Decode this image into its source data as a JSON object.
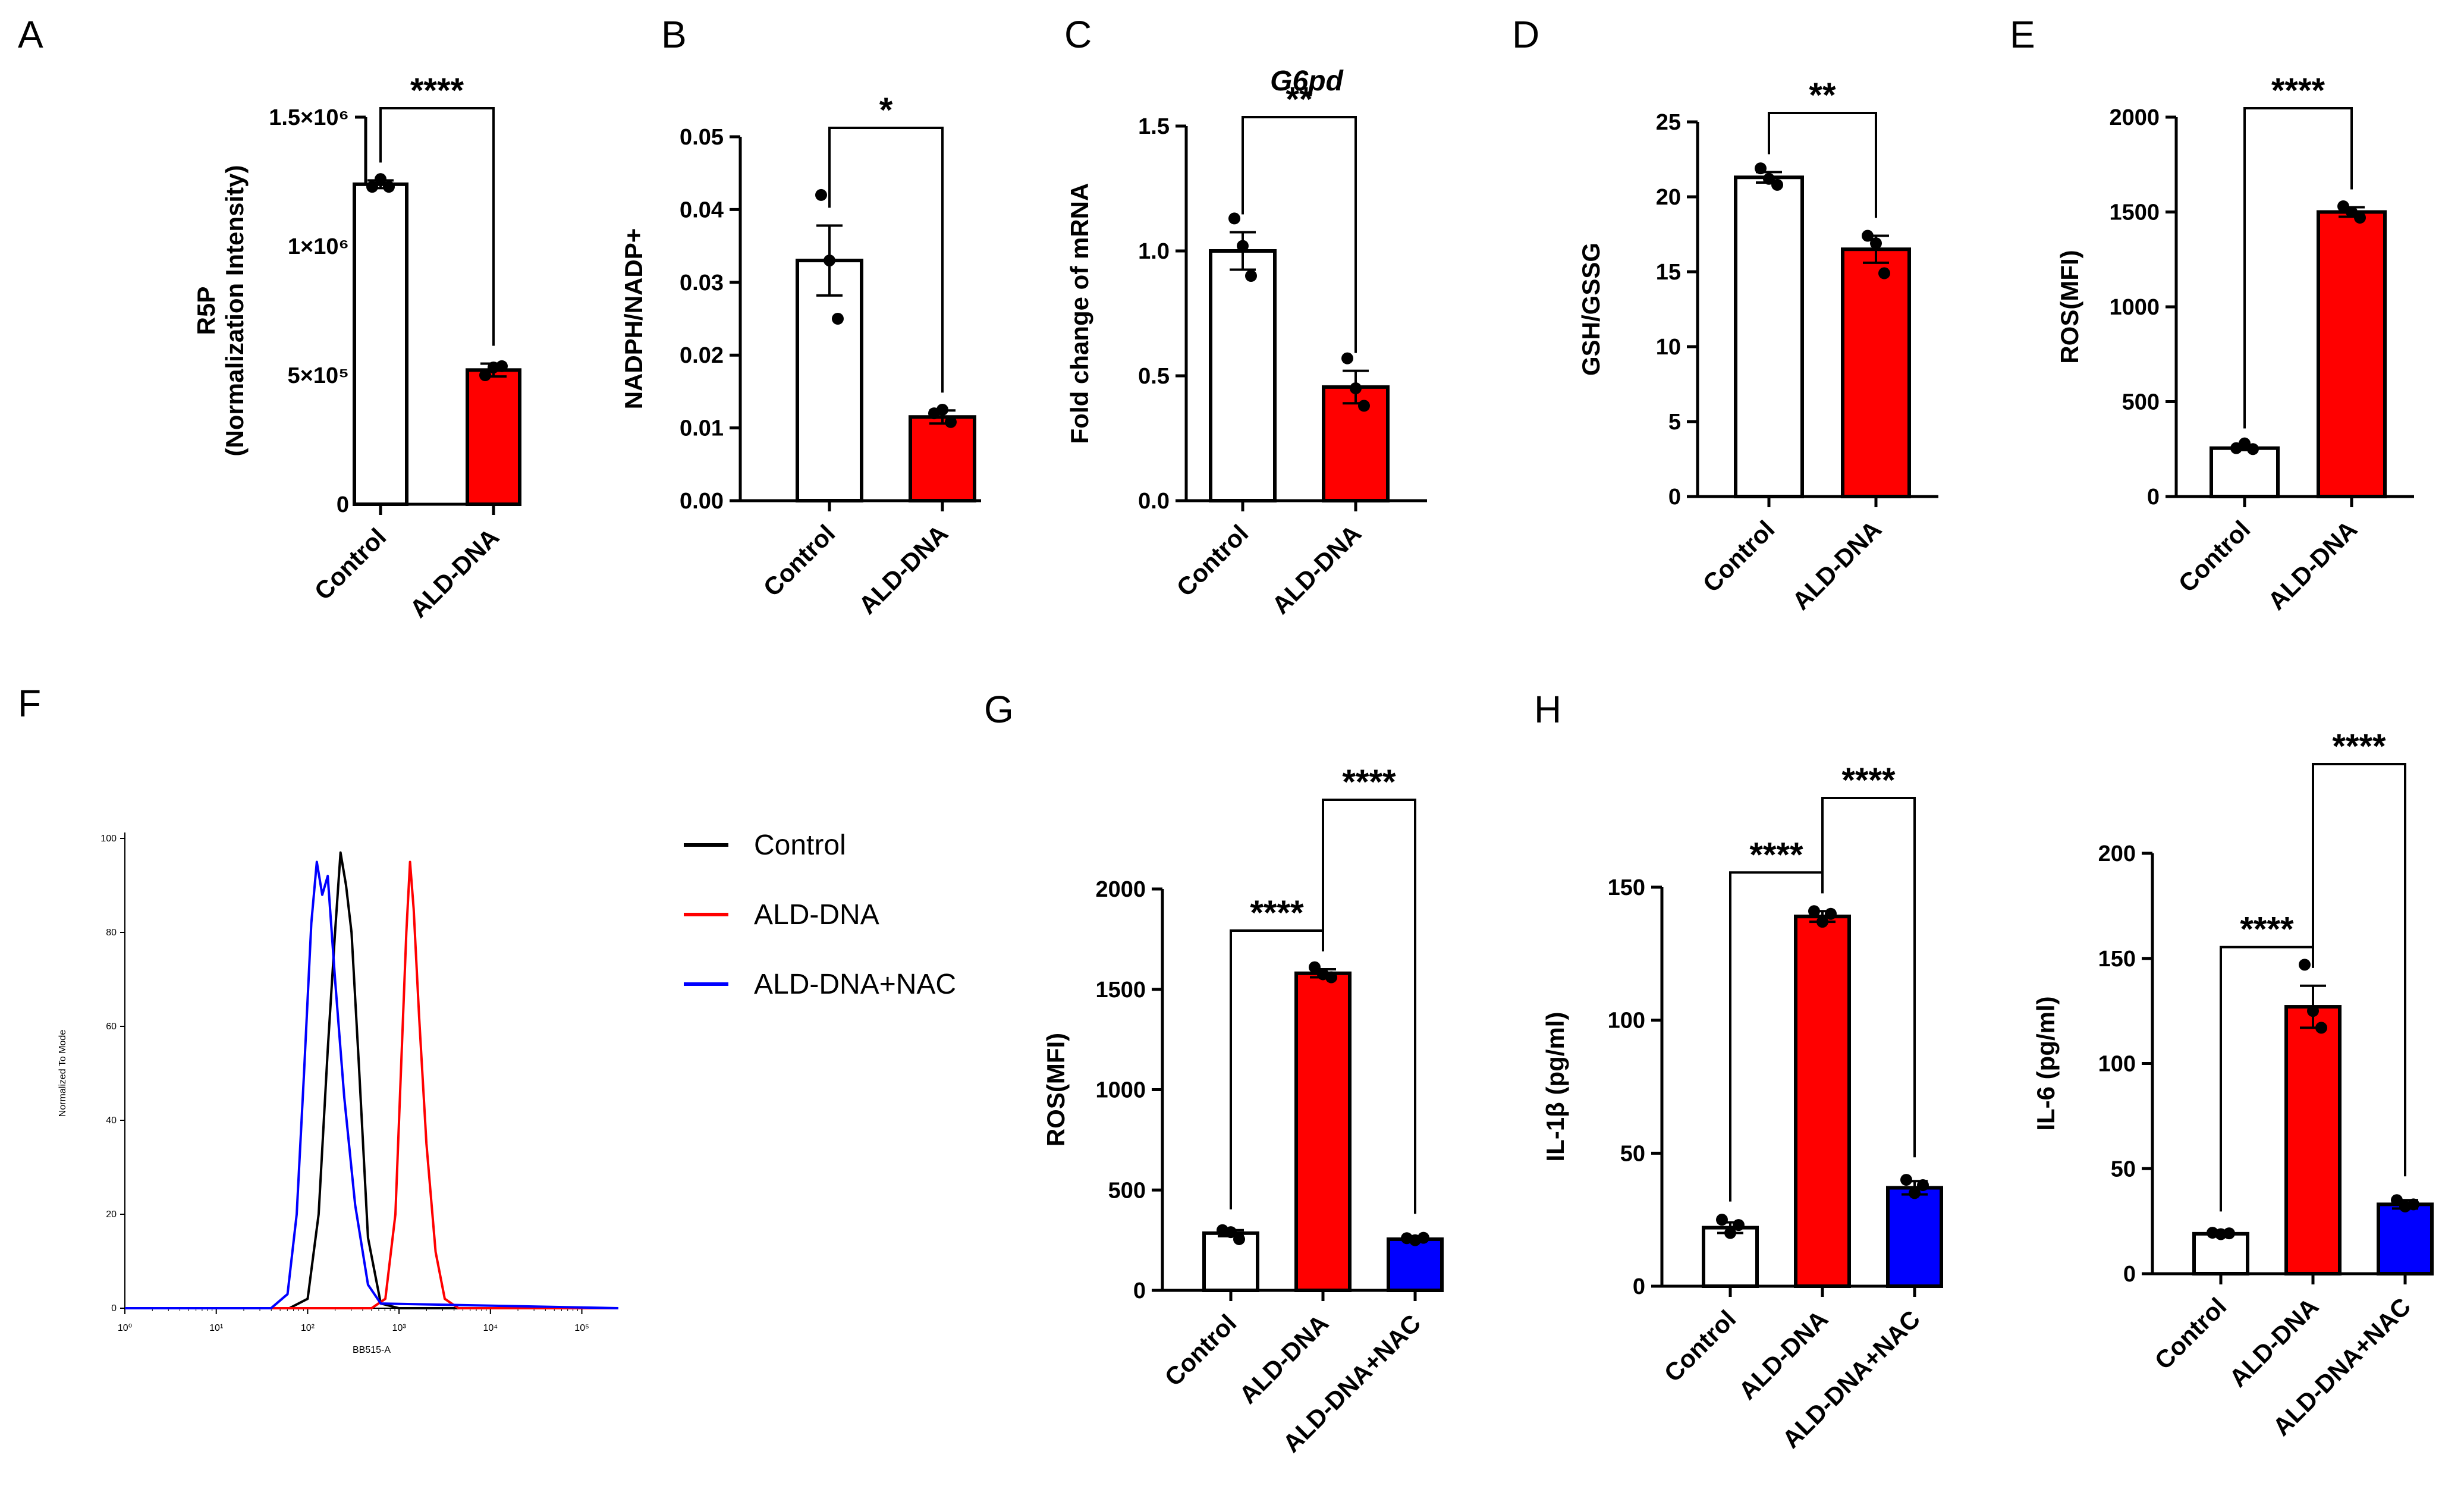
{
  "colors": {
    "control": "#ffffff",
    "ald_dna": "#ff0000",
    "ald_dna_nac": "#0000ff",
    "axis": "#000000"
  },
  "chart_data": [
    {
      "id": "A",
      "letter": "A",
      "type": "bar",
      "title": "",
      "ylabel": [
        "R5P",
        "(Normalization Intensity)"
      ],
      "categories": [
        "Control",
        "ALD-DNA"
      ],
      "values": [
        1240000,
        520000
      ],
      "errors": [
        15000,
        25000
      ],
      "points": [
        [
          1230000,
          1260000,
          1230000
        ],
        [
          500000,
          530000,
          535000
        ]
      ],
      "ylim": [
        0,
        1500000
      ],
      "ticks": [
        0,
        500000,
        1000000,
        1500000
      ],
      "tick_labels": [
        "0",
        "5×10⁵",
        "1×10⁶",
        "1.5×10⁶"
      ],
      "significance": [
        {
          "from": 0,
          "to": 1,
          "label": "****"
        }
      ]
    },
    {
      "id": "B",
      "letter": "B",
      "type": "bar",
      "title": "",
      "ylabel": [
        "NADPH/NADP+"
      ],
      "categories": [
        "Control",
        "ALD-DNA"
      ],
      "values": [
        0.033,
        0.0115
      ],
      "errors": [
        0.0048,
        0.0009
      ],
      "points": [
        [
          0.042,
          0.033,
          0.025
        ],
        [
          0.012,
          0.0125,
          0.0108
        ]
      ],
      "ylim": [
        0,
        0.05
      ],
      "ticks": [
        0,
        0.01,
        0.02,
        0.03,
        0.04,
        0.05
      ],
      "tick_labels": [
        "0.00",
        "0.01",
        "0.02",
        "0.03",
        "0.04",
        "0.05"
      ],
      "significance": [
        {
          "from": 0,
          "to": 1,
          "label": "*"
        }
      ]
    },
    {
      "id": "C",
      "letter": "C",
      "type": "bar",
      "title": "G6pd",
      "ylabel": [
        "Fold change of mRNA"
      ],
      "categories": [
        "Control",
        "ALD-DNA"
      ],
      "values": [
        1.0,
        0.455
      ],
      "errors": [
        0.075,
        0.065
      ],
      "points": [
        [
          1.13,
          1.02,
          0.9
        ],
        [
          0.57,
          0.45,
          0.38
        ]
      ],
      "ylim": [
        0,
        1.5
      ],
      "ticks": [
        0,
        0.5,
        1.0,
        1.5
      ],
      "tick_labels": [
        "0.0",
        "0.5",
        "1.0",
        "1.5"
      ],
      "significance": [
        {
          "from": 0,
          "to": 1,
          "label": "**"
        }
      ]
    },
    {
      "id": "D",
      "letter": "D",
      "type": "bar",
      "title": "",
      "ylabel": [
        "GSH/GSSG"
      ],
      "categories": [
        "Control",
        "ALD-DNA"
      ],
      "values": [
        21.3,
        16.5
      ],
      "errors": [
        0.35,
        0.9
      ],
      "points": [
        [
          21.9,
          21.2,
          20.8
        ],
        [
          17.4,
          16.9,
          14.9
        ]
      ],
      "ylim": [
        0,
        25
      ],
      "ticks": [
        0,
        5,
        10,
        15,
        20,
        25
      ],
      "tick_labels": [
        "0",
        "5",
        "10",
        "15",
        "20",
        "25"
      ],
      "significance": [
        {
          "from": 0,
          "to": 1,
          "label": "**"
        }
      ]
    },
    {
      "id": "E",
      "letter": "E",
      "type": "bar",
      "title": "",
      "ylabel": [
        "ROS(MFI)"
      ],
      "categories": [
        "Control",
        "ALD-DNA"
      ],
      "values": [
        255,
        1500
      ],
      "errors": [
        10,
        25
      ],
      "points": [
        [
          255,
          280,
          250
        ],
        [
          1530,
          1500,
          1470
        ]
      ],
      "ylim": [
        0,
        2000
      ],
      "ticks": [
        0,
        500,
        1000,
        1500,
        2000
      ],
      "tick_labels": [
        "0",
        "500",
        "1000",
        "1500",
        "2000"
      ],
      "significance": [
        {
          "from": 0,
          "to": 1,
          "label": "****"
        }
      ]
    },
    {
      "id": "F",
      "letter": "F",
      "type": "line",
      "title": "",
      "xlabel": "BB515-A",
      "ylabel": "Normalized To Mode",
      "xscale": "log",
      "xlim": [
        0,
        5.4
      ],
      "ylim": [
        0,
        100
      ],
      "x_ticks": [
        0,
        1,
        2,
        3,
        4,
        5
      ],
      "x_tick_labels": [
        "10⁰",
        "10¹",
        "10²",
        "10³",
        "10⁴",
        "10⁵"
      ],
      "y_ticks": [
        0,
        20,
        40,
        60,
        80,
        100
      ],
      "y_tick_labels": [
        "0",
        "20",
        "40",
        "60",
        "80",
        "100"
      ],
      "legend": [
        "Control",
        "ALD-DNA",
        "ALD-DNA+NAC"
      ],
      "legend_position": "right",
      "series": [
        {
          "name": "Control",
          "color": "#000000",
          "x": [
            0,
            1.8,
            2.0,
            2.12,
            2.22,
            2.3,
            2.36,
            2.42,
            2.48,
            2.56,
            2.66,
            2.8,
            3.0,
            5.4
          ],
          "y": [
            0,
            0,
            2,
            20,
            55,
            80,
            97,
            90,
            80,
            52,
            15,
            1,
            0,
            0
          ]
        },
        {
          "name": "ALD-DNA",
          "color": "#ff0000",
          "x": [
            0,
            2.7,
            2.85,
            2.96,
            3.03,
            3.08,
            3.12,
            3.16,
            3.22,
            3.3,
            3.4,
            3.5,
            3.65,
            5.4
          ],
          "y": [
            0,
            0,
            2,
            20,
            55,
            80,
            95,
            85,
            62,
            35,
            12,
            2,
            0,
            0
          ]
        },
        {
          "name": "ALD-DNA+NAC",
          "color": "#0000ff",
          "x": [
            0,
            1.6,
            1.78,
            1.88,
            1.96,
            2.04,
            2.1,
            2.16,
            2.22,
            2.3,
            2.4,
            2.52,
            2.66,
            2.8,
            5.4
          ],
          "y": [
            0,
            0,
            3,
            20,
            50,
            82,
            95,
            88,
            92,
            70,
            45,
            22,
            5,
            1,
            0
          ]
        }
      ]
    },
    {
      "id": "G",
      "letter": "G",
      "type": "bar",
      "title": "",
      "ylabel": [
        "ROS(MFI)"
      ],
      "categories": [
        "Control",
        "ALD-DNA",
        "ALD-DNA+NAC"
      ],
      "values": [
        285,
        1580,
        255
      ],
      "errors": [
        15,
        20,
        8
      ],
      "points": [
        [
          300,
          290,
          255
        ],
        [
          1610,
          1575,
          1560
        ],
        [
          260,
          250,
          262
        ]
      ],
      "ylim": [
        0,
        2000
      ],
      "ticks": [
        0,
        500,
        1000,
        1500,
        2000
      ],
      "tick_labels": [
        "0",
        "500",
        "1000",
        "1500",
        "2000"
      ],
      "significance": [
        {
          "from": 0,
          "to": 1,
          "label": "****"
        },
        {
          "from": 1,
          "to": 2,
          "label": "****"
        }
      ]
    },
    {
      "id": "H1",
      "letter": "H",
      "type": "bar",
      "title": "",
      "ylabel": [
        "IL-1β (pg/ml)"
      ],
      "categories": [
        "Control",
        "ALD-DNA",
        "ALD-DNA+NAC"
      ],
      "values": [
        22,
        139,
        37
      ],
      "errors": [
        2,
        2,
        2.5
      ],
      "points": [
        [
          25,
          20,
          23
        ],
        [
          141,
          137,
          140
        ],
        [
          40,
          35,
          38
        ]
      ],
      "ylim": [
        0,
        150
      ],
      "ticks": [
        0,
        50,
        100,
        150
      ],
      "tick_labels": [
        "0",
        "50",
        "100",
        "150"
      ],
      "significance": [
        {
          "from": 0,
          "to": 1,
          "label": "****"
        },
        {
          "from": 1,
          "to": 2,
          "label": "****"
        }
      ]
    },
    {
      "id": "H2",
      "letter": "",
      "type": "bar",
      "title": "",
      "ylabel": [
        "IL-6 (pg/ml)"
      ],
      "categories": [
        "Control",
        "ALD-DNA",
        "ALD-DNA+NAC"
      ],
      "values": [
        19,
        127,
        33
      ],
      "errors": [
        0.7,
        10,
        2
      ],
      "points": [
        [
          19.5,
          18.8,
          19.2
        ],
        [
          147,
          125,
          117
        ],
        [
          35,
          32,
          33
        ]
      ],
      "ylim": [
        0,
        200
      ],
      "ticks": [
        0,
        50,
        100,
        150,
        200
      ],
      "tick_labels": [
        "0",
        "50",
        "100",
        "150",
        "200"
      ],
      "significance": [
        {
          "from": 0,
          "to": 1,
          "label": "****"
        },
        {
          "from": 1,
          "to": 2,
          "label": "****"
        }
      ]
    }
  ]
}
